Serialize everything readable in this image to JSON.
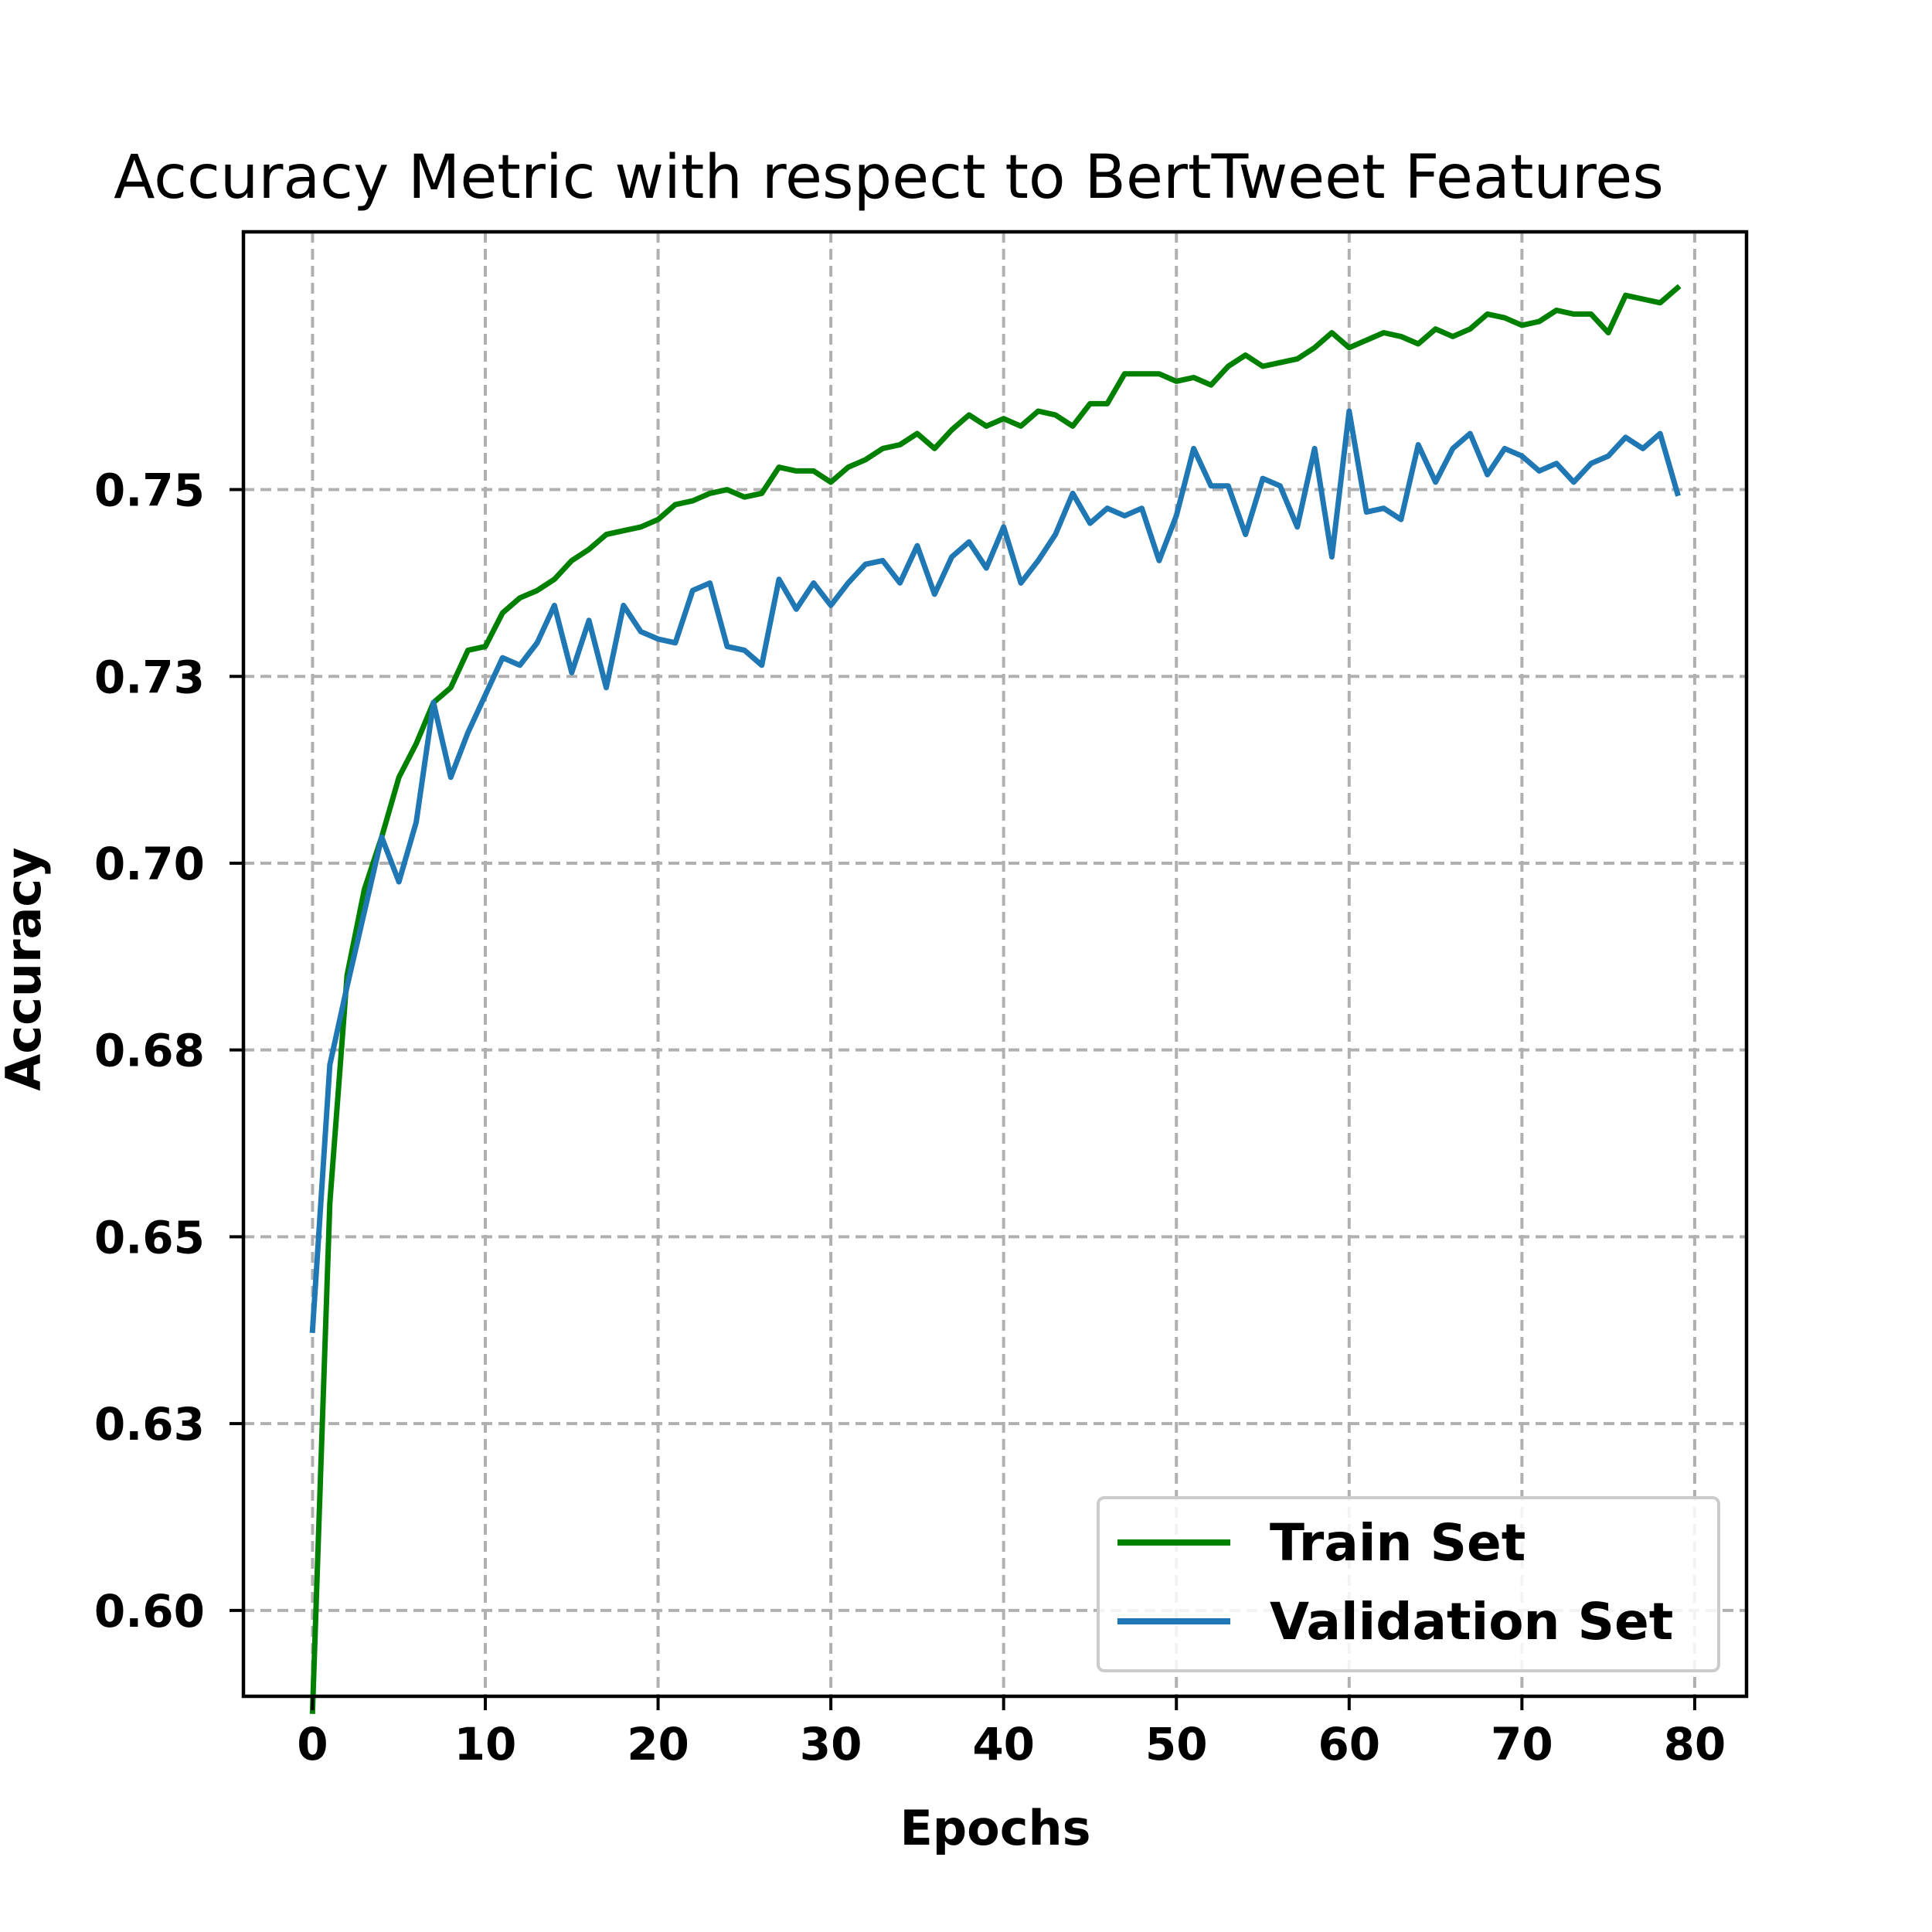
{
  "chart_data": {
    "type": "line",
    "title": "Accuracy Metric with respect to BertTweet Features",
    "xlabel": "Epochs",
    "ylabel": "Accuracy",
    "xlim": [
      -4,
      83
    ],
    "ylim": [
      0.5885,
      0.7845
    ],
    "xticks": [
      0,
      10,
      20,
      30,
      40,
      50,
      60,
      70,
      80
    ],
    "xtick_labels": [
      "0",
      "10",
      "20",
      "30",
      "40",
      "50",
      "60",
      "70",
      "80"
    ],
    "yticks": [
      0.6,
      0.625,
      0.65,
      0.675,
      0.7,
      0.725,
      0.75
    ],
    "ytick_labels": [
      "0.60",
      "0.63",
      "0.65",
      "0.68",
      "0.70",
      "0.73",
      "0.75"
    ],
    "grid": true,
    "legend_position": "lower-right",
    "x": [
      0,
      1,
      2,
      3,
      4,
      5,
      6,
      7,
      8,
      9,
      10,
      11,
      12,
      13,
      14,
      15,
      16,
      17,
      18,
      19,
      20,
      21,
      22,
      23,
      24,
      25,
      26,
      27,
      28,
      29,
      30,
      31,
      32,
      33,
      34,
      35,
      36,
      37,
      38,
      39,
      40,
      41,
      42,
      43,
      44,
      45,
      46,
      47,
      48,
      49,
      50,
      51,
      52,
      53,
      54,
      55,
      56,
      57,
      58,
      59,
      60,
      61,
      62,
      63,
      64,
      65,
      66,
      67,
      68,
      69,
      70,
      71,
      72,
      73,
      74,
      75,
      76,
      77,
      78,
      79
    ],
    "series": [
      {
        "name": "Train Set",
        "color": "#008000",
        "values": [
          0.5865,
          0.6545,
          0.685,
          0.6965,
          0.7035,
          0.7115,
          0.716,
          0.7215,
          0.7235,
          0.7285,
          0.729,
          0.7335,
          0.7355,
          0.7365,
          0.738,
          0.7405,
          0.742,
          0.744,
          0.7445,
          0.745,
          0.746,
          0.748,
          0.7485,
          0.7495,
          0.75,
          0.749,
          0.7495,
          0.753,
          0.7525,
          0.7525,
          0.751,
          0.753,
          0.754,
          0.7555,
          0.756,
          0.7575,
          0.7555,
          0.758,
          0.76,
          0.7585,
          0.7595,
          0.7585,
          0.7605,
          0.76,
          0.7585,
          0.7615,
          0.7615,
          0.7655,
          0.7655,
          0.7655,
          0.7645,
          0.765,
          0.764,
          0.7665,
          0.768,
          0.7665,
          0.767,
          0.7675,
          0.769,
          0.771,
          0.769,
          0.77,
          0.771,
          0.7705,
          0.7695,
          0.7715,
          0.7705,
          0.7715,
          0.7735,
          0.773,
          0.772,
          0.7725,
          0.774,
          0.7735,
          0.7735,
          0.771,
          0.776,
          0.7755,
          0.775,
          0.777
        ]
      },
      {
        "name": "Validation Set",
        "color": "#1f77b4",
        "values": [
          0.6375,
          0.673,
          0.6835,
          0.6935,
          0.7035,
          0.6975,
          0.7055,
          0.7215,
          0.7115,
          0.7175,
          0.7225,
          0.7275,
          0.7265,
          0.7295,
          0.7345,
          0.7255,
          0.7325,
          0.7235,
          0.7345,
          0.731,
          0.73,
          0.7295,
          0.7365,
          0.7375,
          0.729,
          0.7285,
          0.7265,
          0.738,
          0.734,
          0.7375,
          0.7345,
          0.7375,
          0.74,
          0.7405,
          0.7375,
          0.7425,
          0.736,
          0.741,
          0.743,
          0.7395,
          0.745,
          0.7375,
          0.7405,
          0.744,
          0.7495,
          0.7455,
          0.7475,
          0.7465,
          0.7475,
          0.7405,
          0.7465,
          0.7555,
          0.7505,
          0.7505,
          0.744,
          0.7515,
          0.7505,
          0.745,
          0.7555,
          0.741,
          0.7605,
          0.747,
          0.7475,
          0.746,
          0.756,
          0.751,
          0.7555,
          0.7575,
          0.752,
          0.7555,
          0.7545,
          0.7525,
          0.7535,
          0.751,
          0.7535,
          0.7545,
          0.757,
          0.7555,
          0.7575,
          0.7495
        ]
      }
    ]
  }
}
